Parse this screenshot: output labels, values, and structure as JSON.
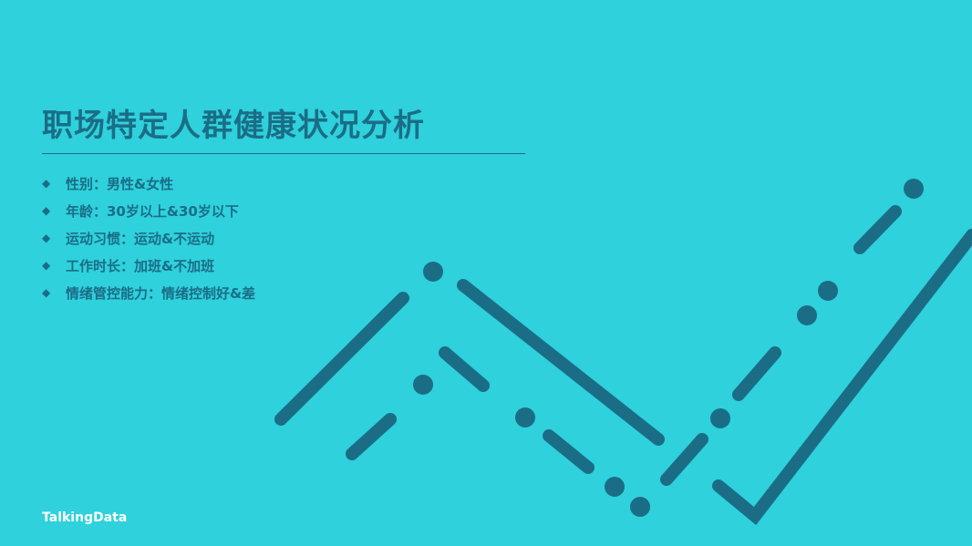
{
  "slide": {
    "title": "职场特定人群健康状况分析",
    "bullets": [
      {
        "marker": "◆",
        "text": "性别：男性&女性"
      },
      {
        "marker": "◆",
        "text": "年龄：30岁以上&30岁以下"
      },
      {
        "marker": "◆",
        "text": "运动习惯：运动&不运动"
      },
      {
        "marker": "◆",
        "text": "工作时长：加班&不加班"
      },
      {
        "marker": "◆",
        "text": "情绪管控能力：情绪控制好&差"
      }
    ],
    "brand": "TalkingData"
  },
  "colors": {
    "background": "#2ed1dc",
    "accent": "#1b6d86",
    "brand_text": "#ffffff"
  }
}
